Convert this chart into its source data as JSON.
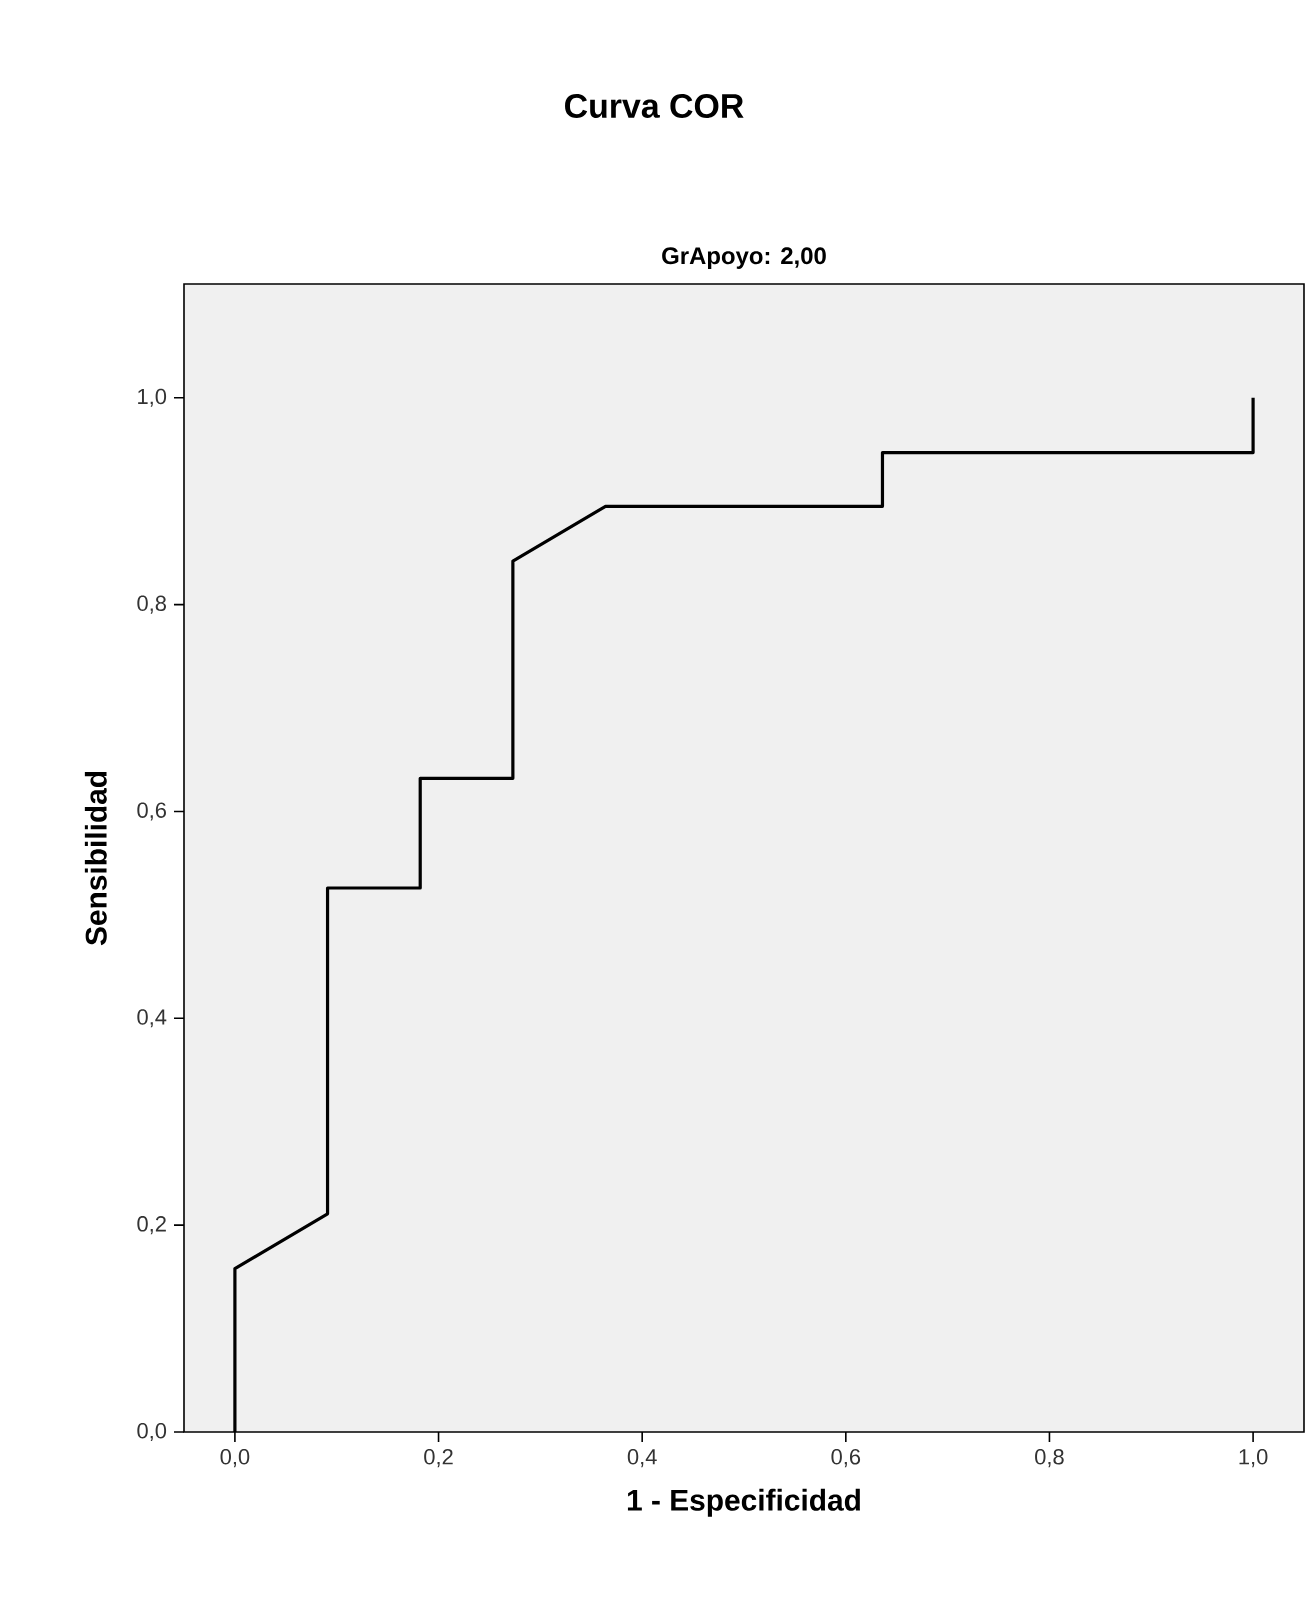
{
  "chart_data": {
    "type": "line",
    "title": "Curva COR",
    "subtitle": "GrApoyo: 2,00",
    "xlabel": "1 - Especificidad",
    "ylabel": "Sensibilidad",
    "x": [
      0,
      0,
      0.091,
      0.091,
      0.182,
      0.182,
      0.273,
      0.273,
      0.364,
      0.636,
      0.636,
      1,
      1
    ],
    "values": [
      0,
      0.158,
      0.211,
      0.526,
      0.526,
      0.632,
      0.632,
      0.842,
      0.895,
      0.895,
      0.947,
      0.947,
      1
    ],
    "color": "#000000",
    "xlim": [
      -0.05,
      1.05
    ],
    "ylim": [
      0,
      1.11
    ],
    "xticks": [
      {
        "value": 0,
        "label": "0,0"
      },
      {
        "value": 0.2,
        "label": "0,2"
      },
      {
        "value": 0.4,
        "label": "0,4"
      },
      {
        "value": 0.6,
        "label": "0,6"
      },
      {
        "value": 0.8,
        "label": "0,8"
      },
      {
        "value": 1,
        "label": "1,0"
      }
    ],
    "yticks": [
      {
        "value": 0,
        "label": "0,0"
      },
      {
        "value": 0.2,
        "label": "0,2"
      },
      {
        "value": 0.4,
        "label": "0,4"
      },
      {
        "value": 0.6,
        "label": "0,6"
      },
      {
        "value": 0.8,
        "label": "0,8"
      },
      {
        "value": 1,
        "label": "1,0"
      }
    ]
  }
}
